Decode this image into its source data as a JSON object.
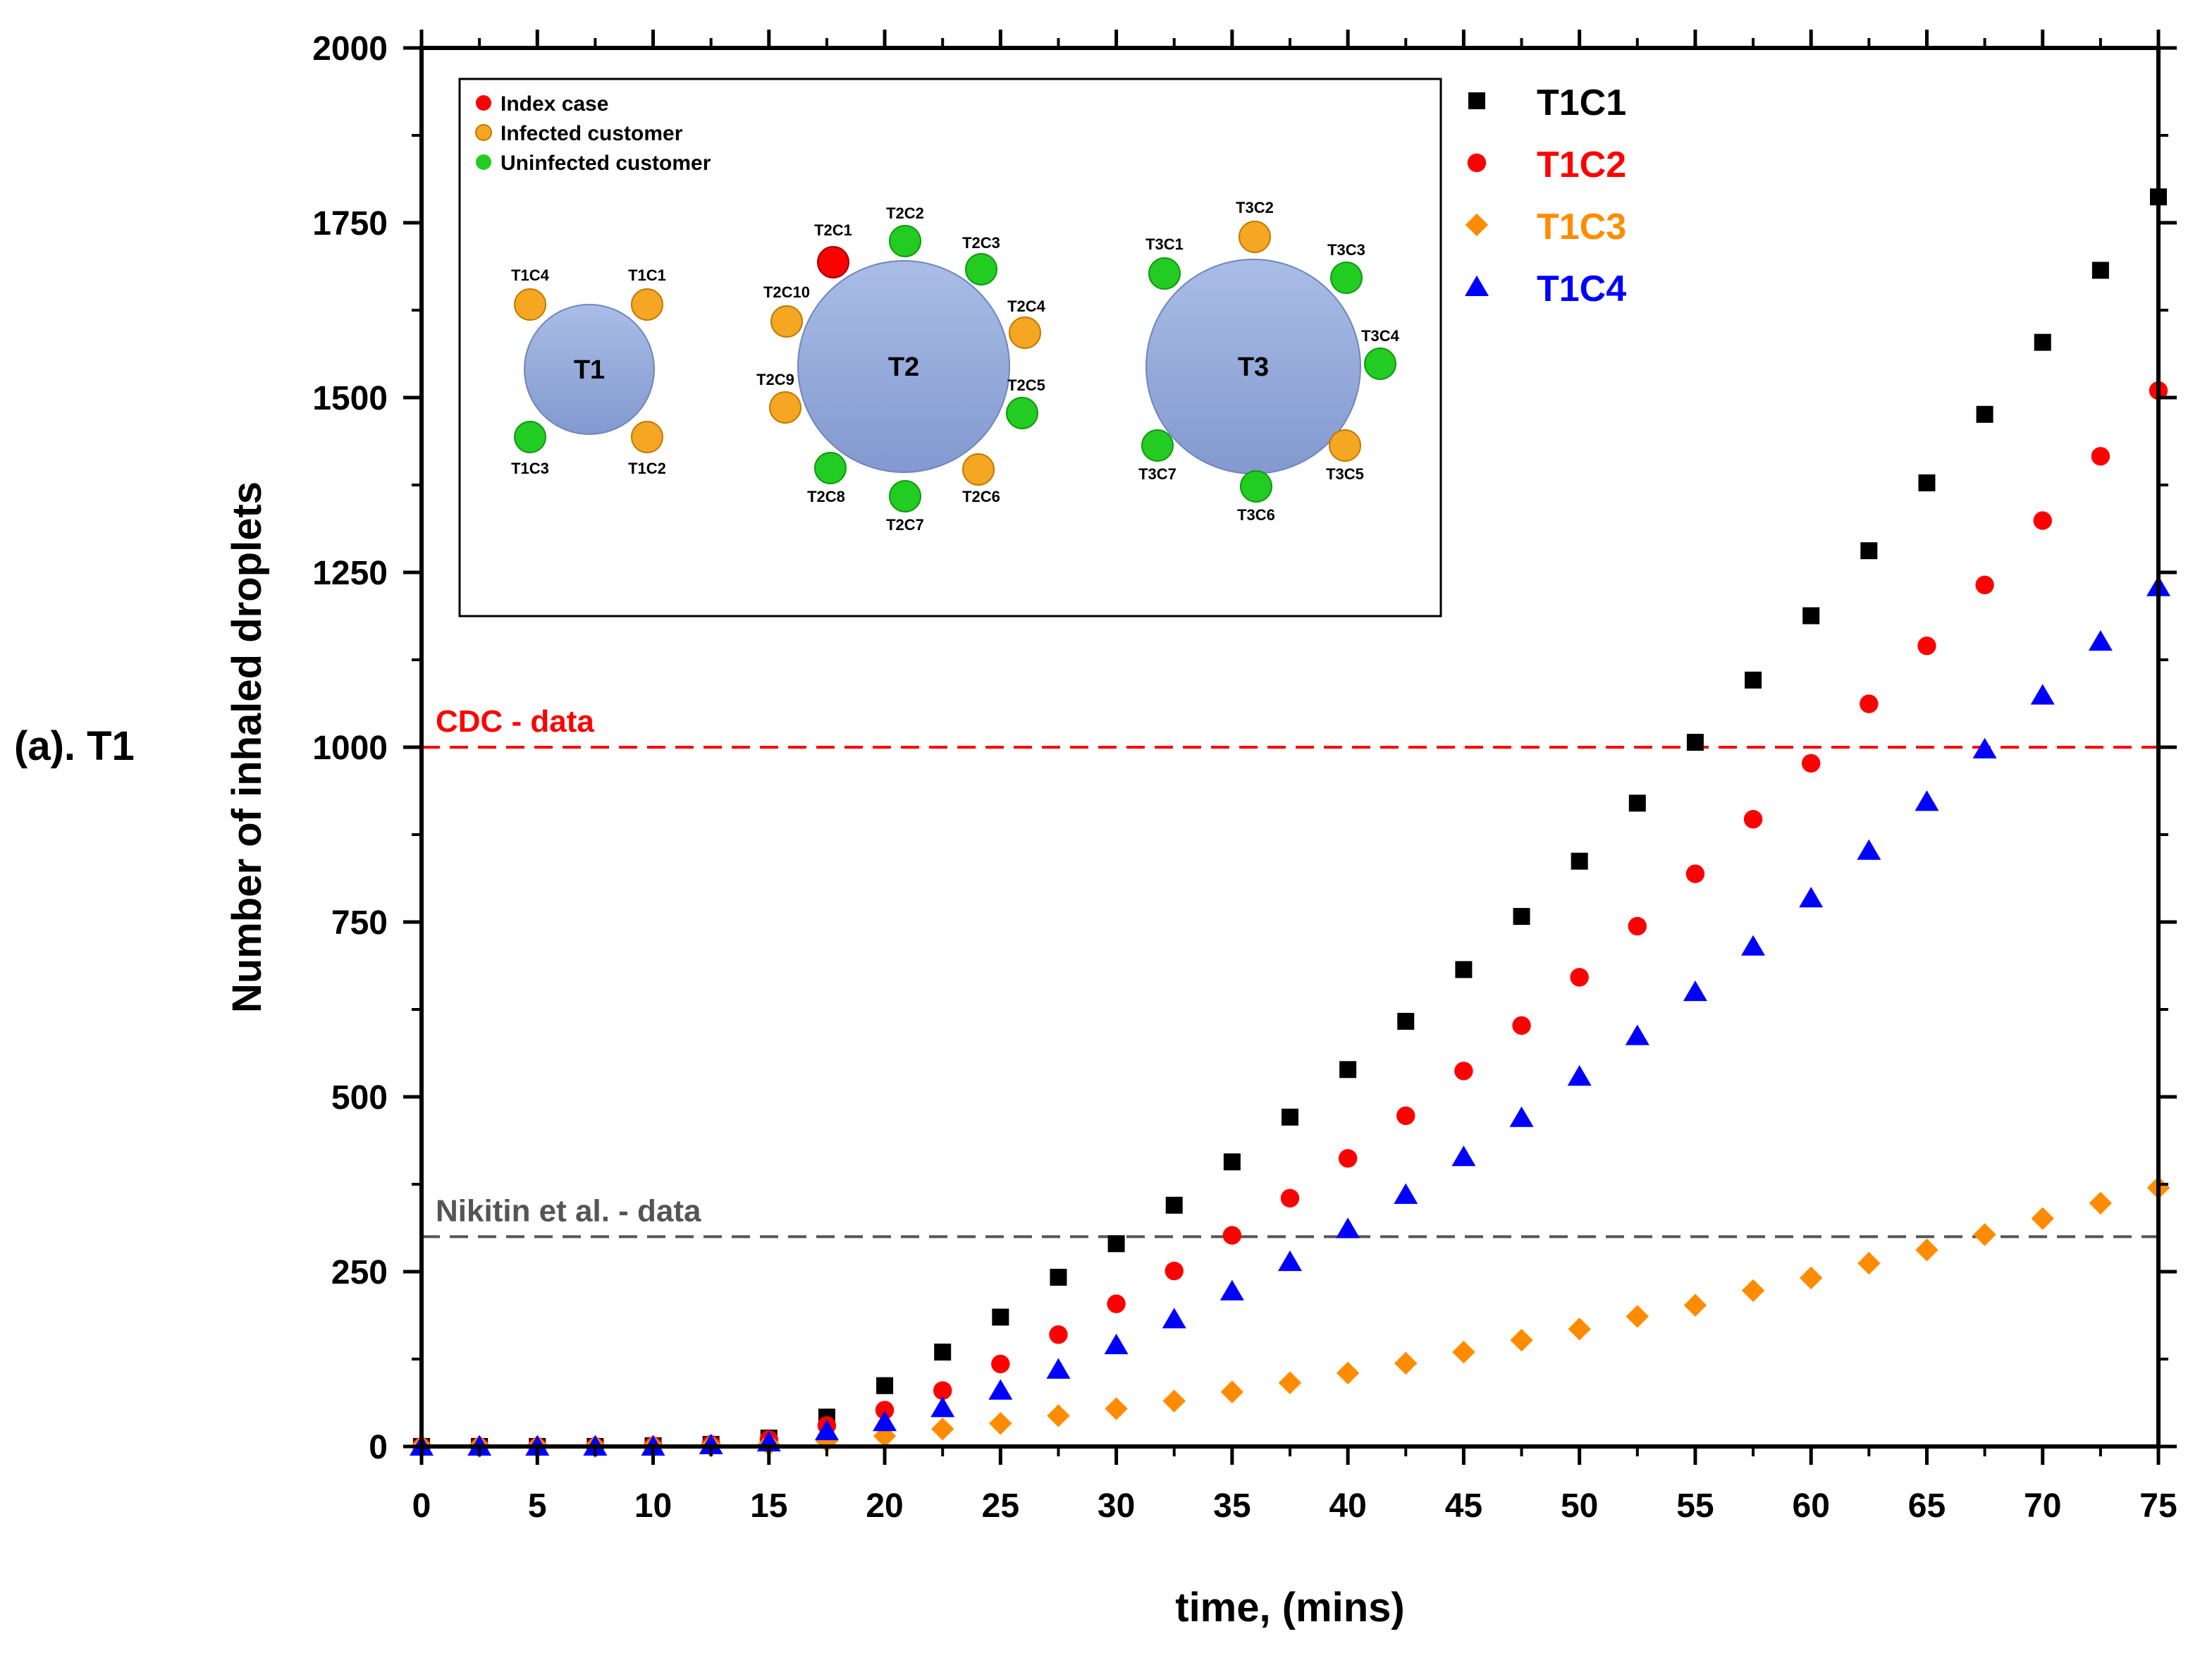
{
  "chart_data": {
    "type": "scatter",
    "panel_label": "(a). T1",
    "xlabel": "time, (mins)",
    "ylabel": "Number of inhaled droplets",
    "xlim": [
      0,
      75
    ],
    "ylim": [
      0,
      2000
    ],
    "xticks": [
      0,
      5,
      10,
      15,
      20,
      25,
      30,
      35,
      40,
      45,
      50,
      55,
      60,
      65,
      70,
      75
    ],
    "yticks": [
      0,
      250,
      500,
      750,
      1000,
      1250,
      1500,
      1750,
      2000
    ],
    "x": [
      0,
      2.5,
      5,
      7.5,
      10,
      12.5,
      15,
      17.5,
      20,
      22.5,
      25,
      27.5,
      30,
      32.5,
      35,
      37.5,
      40,
      42.5,
      45,
      47.5,
      50,
      52.5,
      55,
      57.5,
      60,
      62.5,
      65,
      67.5,
      70,
      72.5,
      75
    ],
    "series": [
      {
        "name": "T1C1",
        "marker": "square",
        "color": "#000000",
        "values": [
          0,
          0,
          0,
          0,
          1,
          3,
          12,
          42,
          87,
          135,
          185,
          242,
          290,
          345,
          407,
          471,
          539,
          608,
          682,
          758,
          837,
          920,
          1007,
          1096,
          1188,
          1281,
          1378,
          1476,
          1579,
          1682,
          1787
        ]
      },
      {
        "name": "T1C2",
        "marker": "circle",
        "color": "#ff0000",
        "values": [
          0,
          0,
          0,
          0,
          1,
          3,
          10,
          30,
          52,
          80,
          118,
          160,
          204,
          251,
          302,
          355,
          412,
          473,
          537,
          602,
          671,
          744,
          819,
          897,
          977,
          1062,
          1145,
          1232,
          1324,
          1416,
          1510
        ]
      },
      {
        "name": "T1C3",
        "marker": "diamond",
        "color": "#ff8c00",
        "values": [
          0,
          0,
          0,
          0,
          0,
          1,
          3,
          8,
          15,
          25,
          33,
          44,
          54,
          65,
          78,
          91,
          105,
          119,
          135,
          152,
          168,
          186,
          202,
          223,
          241,
          262,
          281,
          303,
          326,
          348,
          370
        ]
      },
      {
        "name": "T1C4",
        "marker": "triangle",
        "color": "#0000ff",
        "values": [
          0,
          0,
          0,
          0,
          0,
          2,
          6,
          22,
          35,
          55,
          80,
          110,
          145,
          182,
          222,
          264,
          311,
          360,
          414,
          470,
          529,
          587,
          650,
          715,
          784,
          852,
          922,
          997,
          1074,
          1151,
          1229
        ]
      }
    ],
    "reference_lines": [
      {
        "label": "CDC - data",
        "y": 1000,
        "color": "#ff0000"
      },
      {
        "label": "Nikitin et al. - data",
        "y": 300,
        "color": "#555555"
      }
    ],
    "legend_position": "top-right",
    "inset": {
      "legend": [
        {
          "label": "Index case",
          "color": "#ff0000"
        },
        {
          "label": "Infected customer",
          "color": "#f5a623"
        },
        {
          "label": "Uninfected customer",
          "color": "#22cc22"
        }
      ],
      "tables": [
        {
          "name": "T1",
          "seats": [
            {
              "label": "T1C1",
              "status": "infected"
            },
            {
              "label": "T1C2",
              "status": "infected"
            },
            {
              "label": "T1C3",
              "status": "uninfected"
            },
            {
              "label": "T1C4",
              "status": "infected"
            }
          ]
        },
        {
          "name": "T2",
          "seats": [
            {
              "label": "T2C1",
              "status": "index"
            },
            {
              "label": "T2C2",
              "status": "uninfected"
            },
            {
              "label": "T2C3",
              "status": "uninfected"
            },
            {
              "label": "T2C4",
              "status": "infected"
            },
            {
              "label": "T2C5",
              "status": "uninfected"
            },
            {
              "label": "T2C6",
              "status": "infected"
            },
            {
              "label": "T2C7",
              "status": "uninfected"
            },
            {
              "label": "T2C8",
              "status": "uninfected"
            },
            {
              "label": "T2C9",
              "status": "infected"
            },
            {
              "label": "T2C10",
              "status": "infected"
            }
          ]
        },
        {
          "name": "T3",
          "seats": [
            {
              "label": "T3C1",
              "status": "uninfected"
            },
            {
              "label": "T3C2",
              "status": "infected"
            },
            {
              "label": "T3C3",
              "status": "uninfected"
            },
            {
              "label": "T3C4",
              "status": "uninfected"
            },
            {
              "label": "T3C5",
              "status": "infected"
            },
            {
              "label": "T3C6",
              "status": "uninfected"
            },
            {
              "label": "T3C7",
              "status": "uninfected"
            }
          ]
        }
      ]
    }
  }
}
